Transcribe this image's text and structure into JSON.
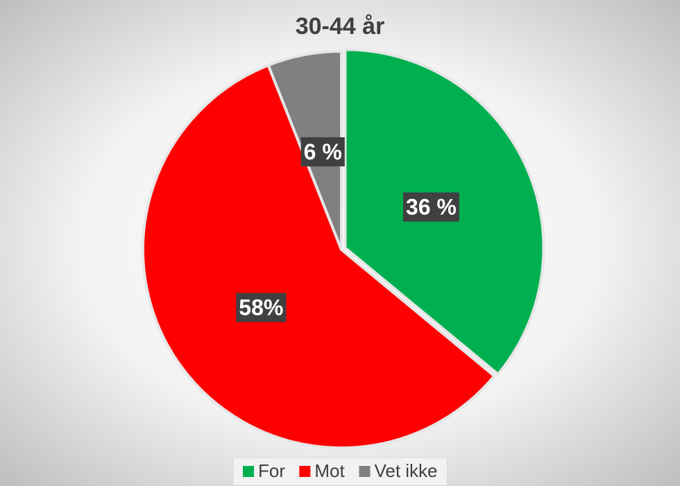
{
  "chart_data": {
    "type": "pie",
    "title": "30-44 år",
    "categories": [
      "For",
      "Mot",
      "Vet ikke"
    ],
    "values": [
      36,
      58,
      6
    ],
    "value_labels": [
      "36 %",
      "58%",
      "6 %"
    ],
    "colors": [
      "#00b050",
      "#ff0000",
      "#808080"
    ],
    "legend": "bottom"
  }
}
